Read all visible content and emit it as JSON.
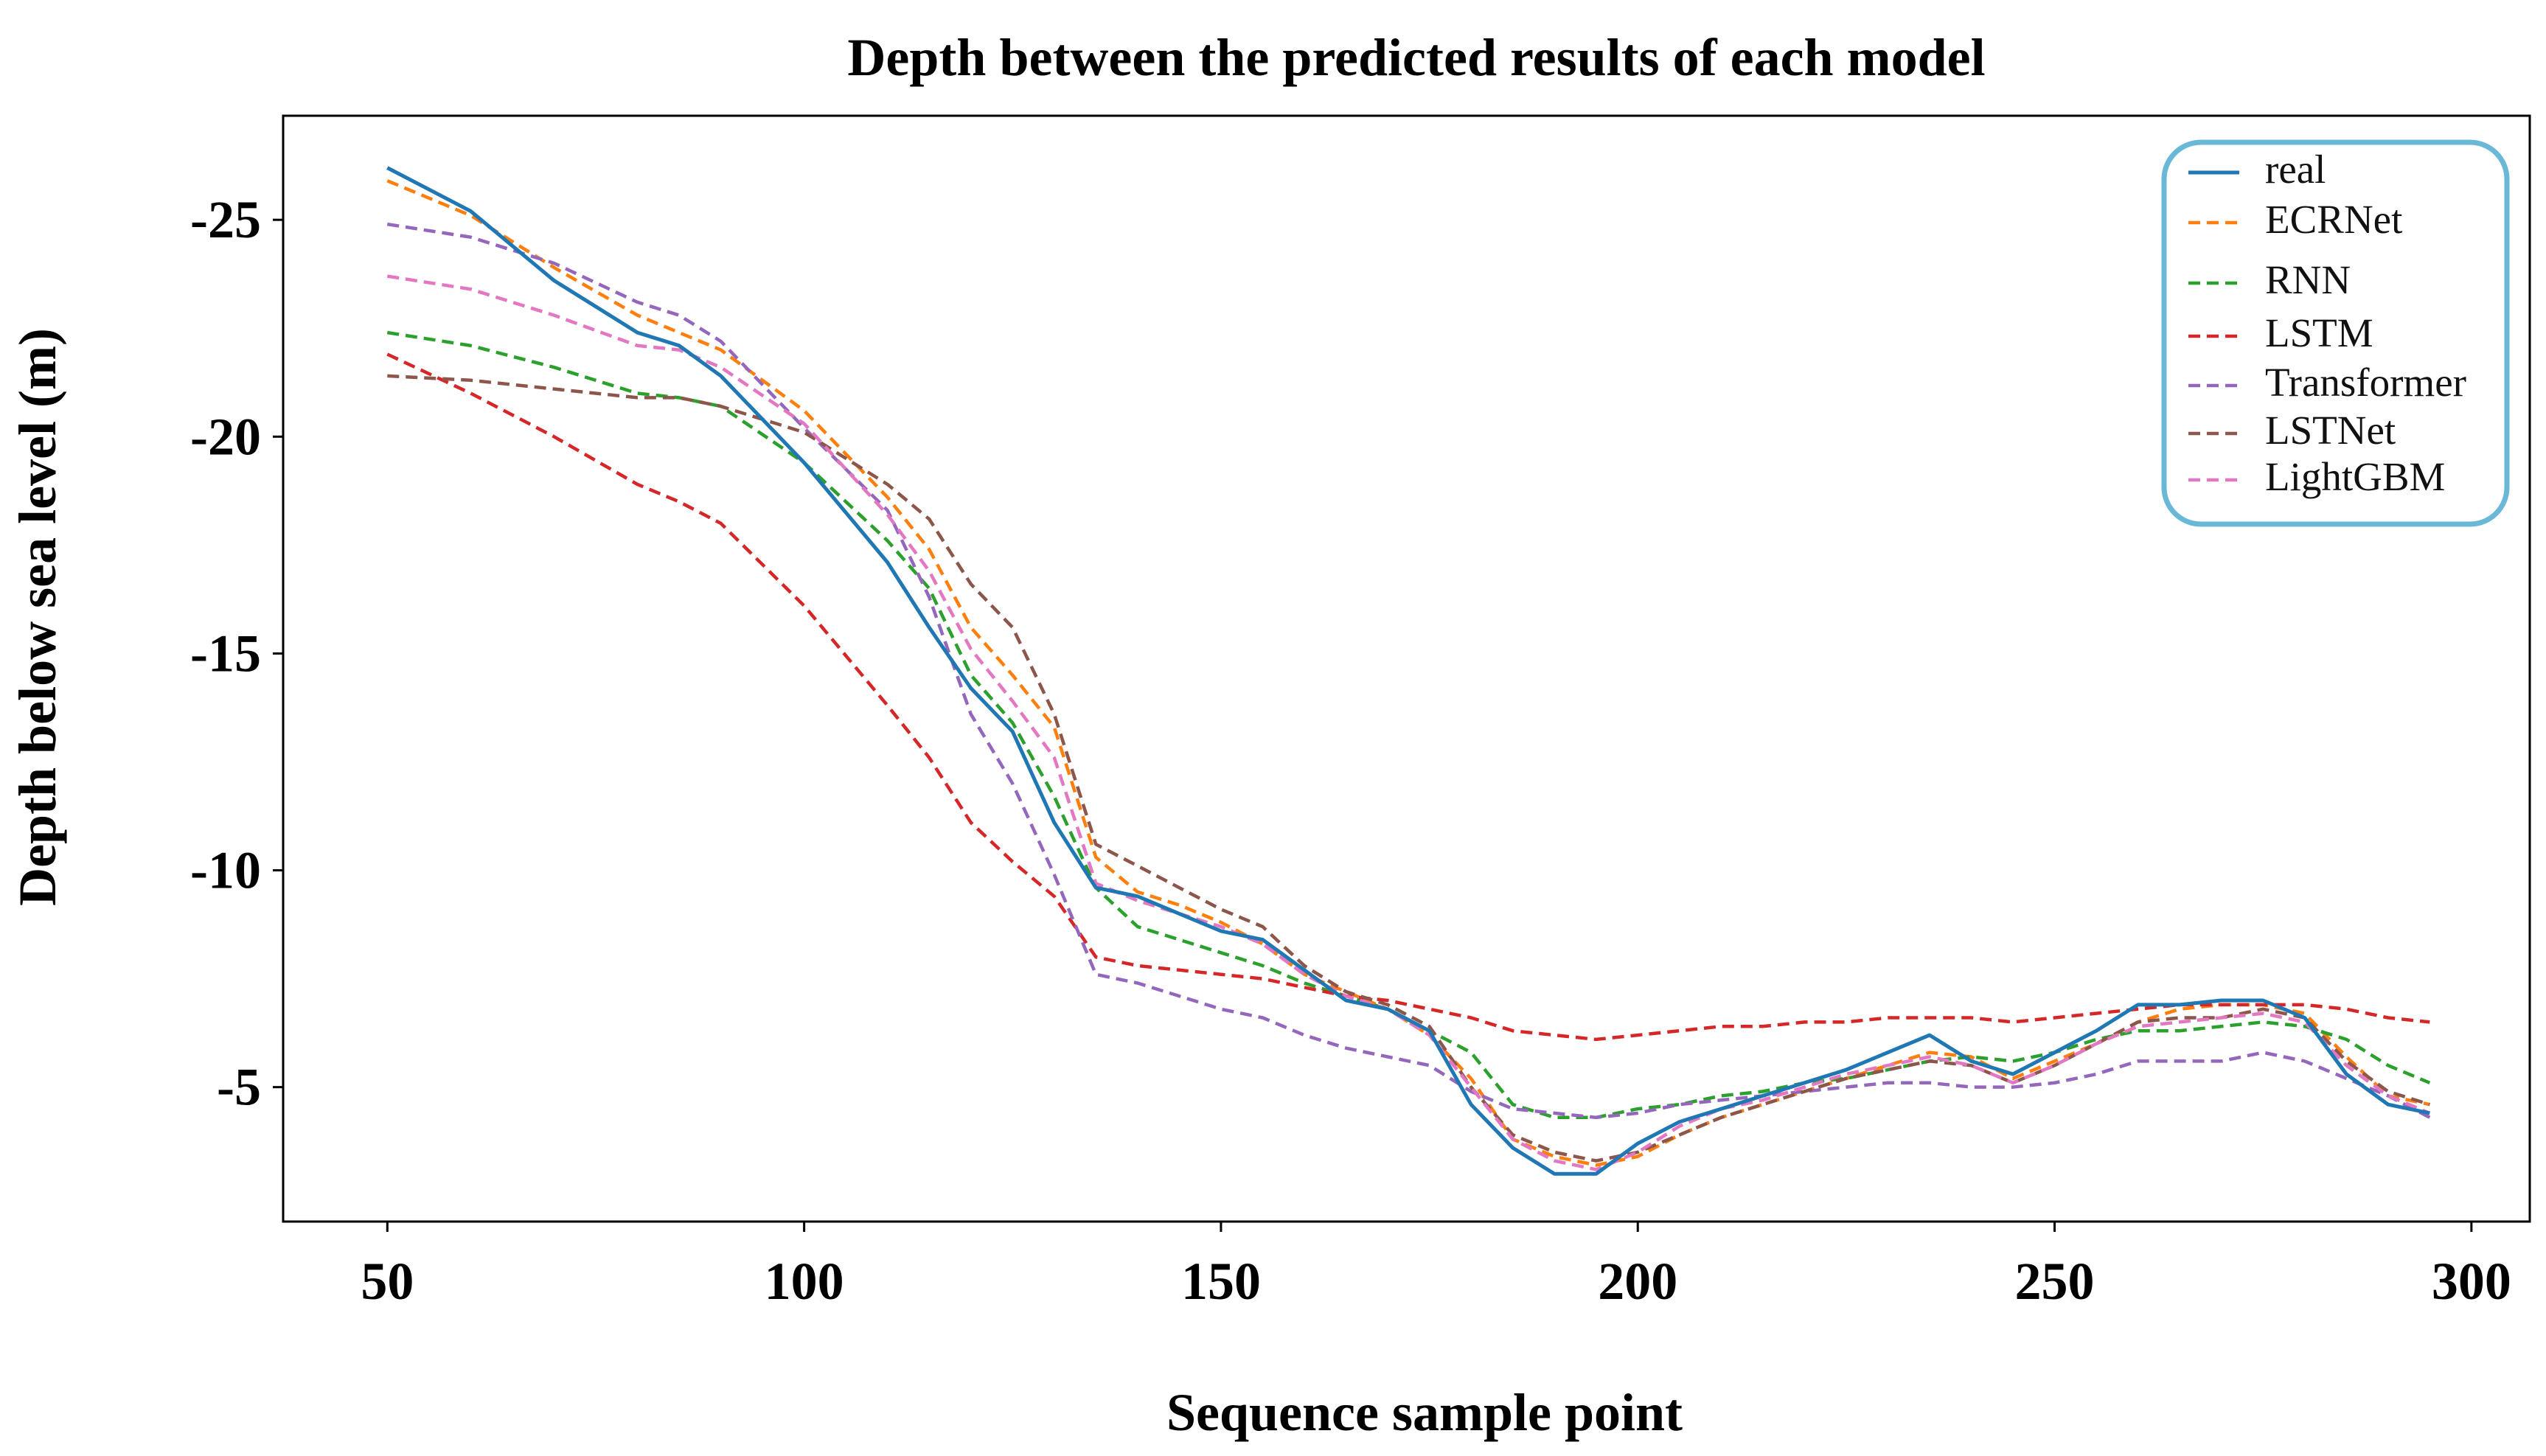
{
  "chart_data": {
    "type": "line",
    "title": "Depth between the predicted results of each model",
    "xlabel": "Sequence sample point",
    "ylabel": "Depth below sea level (m)",
    "xlim": [
      37.5,
      307
    ],
    "ylim": [
      -27.4,
      -1.9
    ],
    "xticks": [
      50,
      100,
      150,
      200,
      250,
      300
    ],
    "yticks": [
      -25,
      -20,
      -15,
      -10,
      -5
    ],
    "xtick_labels": [
      "50",
      "100",
      "150",
      "200",
      "250",
      "300"
    ],
    "ytick_labels": [
      "-25",
      "-20",
      "-15",
      "-10",
      "-5"
    ],
    "grid": false,
    "legend_position": "top-right",
    "x": [
      50,
      60,
      70,
      80,
      85,
      90,
      100,
      110,
      115,
      120,
      125,
      130,
      135,
      140,
      145,
      150,
      155,
      160,
      165,
      170,
      175,
      180,
      185,
      190,
      195,
      200,
      205,
      210,
      215,
      220,
      225,
      230,
      235,
      240,
      245,
      250,
      255,
      260,
      265,
      270,
      275,
      280,
      285,
      290,
      295
    ],
    "series": [
      {
        "name": "real",
        "style": "solid",
        "color": "#1f77b4",
        "values": [
          -26.2,
          -25.2,
          -23.6,
          -22.4,
          -22.1,
          -21.4,
          -19.4,
          -17.1,
          -15.6,
          -14.2,
          -13.2,
          -11.1,
          -9.6,
          -9.4,
          -9.0,
          -8.6,
          -8.4,
          -7.7,
          -7.0,
          -6.8,
          -6.3,
          -4.6,
          -3.6,
          -3.0,
          -3.0,
          -3.7,
          -4.2,
          -4.5,
          -4.8,
          -5.1,
          -5.4,
          -5.8,
          -6.2,
          -5.6,
          -5.3,
          -5.8,
          -6.3,
          -6.9,
          -6.9,
          -7.0,
          -7.0,
          -6.6,
          -5.3,
          -4.6,
          -4.4
        ]
      },
      {
        "name": "ECRNet",
        "style": "dashed",
        "color": "#ff7f0e",
        "values": [
          -25.9,
          -25.1,
          -23.9,
          -22.8,
          -22.4,
          -22.0,
          -20.6,
          -18.6,
          -17.4,
          -15.6,
          -14.5,
          -13.3,
          -10.3,
          -9.5,
          -9.2,
          -8.8,
          -8.3,
          -7.6,
          -7.2,
          -6.8,
          -6.2,
          -5.2,
          -3.8,
          -3.4,
          -3.2,
          -3.4,
          -3.9,
          -4.3,
          -4.6,
          -4.9,
          -5.2,
          -5.5,
          -5.8,
          -5.7,
          -5.2,
          -5.6,
          -6.0,
          -6.5,
          -6.8,
          -6.9,
          -6.9,
          -6.7,
          -5.7,
          -4.8,
          -4.6
        ]
      },
      {
        "name": "RNN",
        "style": "dashed",
        "color": "#2ca02c",
        "values": [
          -22.4,
          -22.1,
          -21.6,
          -21.0,
          -20.9,
          -20.7,
          -19.4,
          -17.6,
          -16.5,
          -14.5,
          -13.4,
          -11.7,
          -9.6,
          -8.7,
          -8.4,
          -8.1,
          -7.8,
          -7.4,
          -7.1,
          -6.8,
          -6.3,
          -5.8,
          -4.6,
          -4.3,
          -4.3,
          -4.5,
          -4.6,
          -4.8,
          -4.9,
          -5.1,
          -5.2,
          -5.4,
          -5.6,
          -5.7,
          -5.6,
          -5.8,
          -6.1,
          -6.3,
          -6.3,
          -6.4,
          -6.5,
          -6.4,
          -6.1,
          -5.5,
          -5.1
        ]
      },
      {
        "name": "LSTM",
        "style": "dashed",
        "color": "#d62728",
        "values": [
          -21.9,
          -21.0,
          -20.0,
          -18.9,
          -18.5,
          -18.0,
          -16.1,
          -13.8,
          -12.6,
          -11.1,
          -10.2,
          -9.4,
          -8.0,
          -7.8,
          -7.7,
          -7.6,
          -7.5,
          -7.3,
          -7.1,
          -7.0,
          -6.8,
          -6.6,
          -6.3,
          -6.2,
          -6.1,
          -6.2,
          -6.3,
          -6.4,
          -6.4,
          -6.5,
          -6.5,
          -6.6,
          -6.6,
          -6.6,
          -6.5,
          -6.6,
          -6.7,
          -6.8,
          -6.9,
          -6.9,
          -6.9,
          -6.9,
          -6.8,
          -6.6,
          -6.5
        ]
      },
      {
        "name": "Transformer",
        "style": "dashed",
        "color": "#9467bd",
        "values": [
          -24.9,
          -24.6,
          -24.0,
          -23.1,
          -22.8,
          -22.2,
          -20.2,
          -18.3,
          -16.3,
          -13.6,
          -12.0,
          -9.9,
          -7.6,
          -7.4,
          -7.1,
          -6.8,
          -6.6,
          -6.2,
          -5.9,
          -5.7,
          -5.5,
          -4.9,
          -4.5,
          -4.4,
          -4.3,
          -4.4,
          -4.6,
          -4.7,
          -4.8,
          -4.9,
          -5.0,
          -5.1,
          -5.1,
          -5.0,
          -5.0,
          -5.1,
          -5.3,
          -5.6,
          -5.6,
          -5.6,
          -5.8,
          -5.6,
          -5.2,
          -4.8,
          -4.3
        ]
      },
      {
        "name": "LSTNet",
        "style": "dashed",
        "color": "#8c564b",
        "values": [
          -21.4,
          -21.3,
          -21.1,
          -20.9,
          -20.9,
          -20.7,
          -20.1,
          -18.9,
          -18.1,
          -16.6,
          -15.6,
          -13.6,
          -10.6,
          -10.1,
          -9.6,
          -9.1,
          -8.7,
          -7.8,
          -7.2,
          -6.9,
          -6.4,
          -5.0,
          -3.9,
          -3.5,
          -3.3,
          -3.5,
          -3.9,
          -4.3,
          -4.6,
          -4.9,
          -5.2,
          -5.4,
          -5.6,
          -5.5,
          -5.1,
          -5.5,
          -6.0,
          -6.5,
          -6.6,
          -6.6,
          -6.8,
          -6.6,
          -5.6,
          -4.9,
          -4.6
        ]
      },
      {
        "name": "LightGBM",
        "style": "dashed",
        "color": "#e377c2",
        "values": [
          -23.7,
          -23.4,
          -22.8,
          -22.1,
          -22.0,
          -21.6,
          -20.3,
          -18.2,
          -16.9,
          -15.1,
          -13.9,
          -12.6,
          -9.7,
          -9.3,
          -9.0,
          -8.7,
          -8.3,
          -7.6,
          -7.1,
          -6.8,
          -6.2,
          -5.0,
          -3.8,
          -3.3,
          -3.1,
          -3.5,
          -4.1,
          -4.5,
          -4.7,
          -5.0,
          -5.3,
          -5.5,
          -5.7,
          -5.5,
          -5.1,
          -5.5,
          -6.0,
          -6.4,
          -6.5,
          -6.6,
          -6.7,
          -6.5,
          -5.5,
          -4.8,
          -4.4
        ]
      }
    ]
  }
}
